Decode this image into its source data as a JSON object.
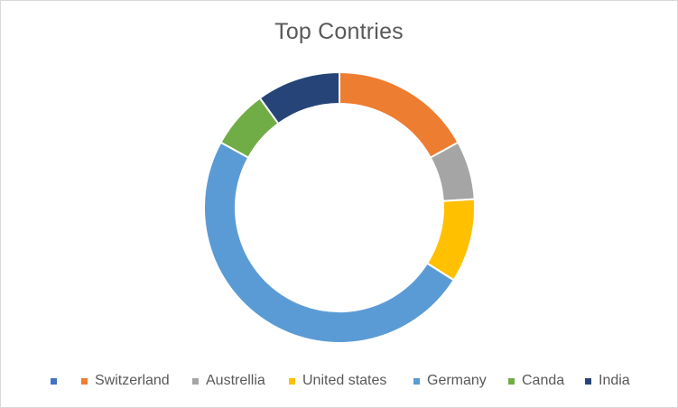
{
  "chart_data": {
    "type": "pie",
    "variant": "doughnut",
    "title": "Top Contries",
    "categories": [
      "",
      "Switzerland",
      "Austrellia",
      "United states",
      "Germany",
      "Canda",
      "India"
    ],
    "values": [
      0,
      17,
      7,
      10,
      49,
      7,
      10
    ],
    "colors": [
      "#4472c4",
      "#ed7d31",
      "#a5a5a5",
      "#ffc000",
      "#5b9bd5",
      "#70ad47",
      "#264478"
    ],
    "legend_position": "bottom",
    "start_angle_deg": 0,
    "direction": "clockwise"
  }
}
